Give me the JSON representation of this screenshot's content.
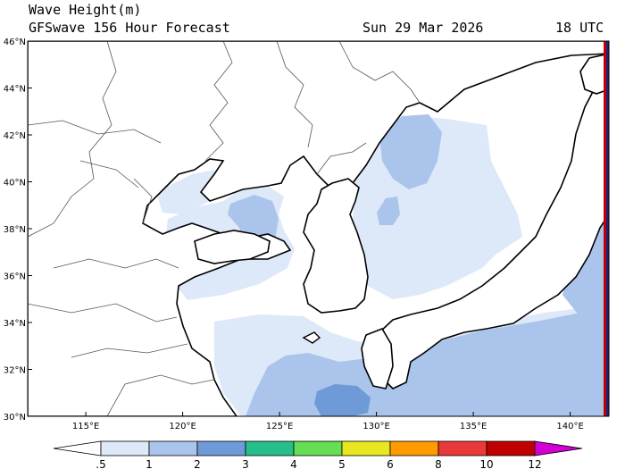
{
  "header": {
    "title": "Wave Height(m)",
    "model": "GFSwave 156 Hour Forecast",
    "date": "Sun 29 Mar 2026",
    "time": "18 UTC"
  },
  "map": {
    "lon_range": [
      112,
      142
    ],
    "lat_range": [
      30,
      46
    ],
    "lat_labels": [
      "30°N",
      "32°N",
      "34°N",
      "36°N",
      "38°N",
      "40°N",
      "42°N",
      "44°N",
      "46°N"
    ],
    "lon_labels": [
      "115°E",
      "120°E",
      "125°E",
      "130°E",
      "135°E",
      "140°E"
    ],
    "colors": {
      "land": "#ffffff",
      "band_0_5_1": "#dde8f8",
      "band_1_2": "#aac4ec",
      "band_2_3": "#6f9ad8",
      "coast": "#000000",
      "border": "#555555"
    }
  },
  "colorbar": {
    "labels": [
      ".5",
      "1",
      "2",
      "3",
      "4",
      "5",
      "6",
      "8",
      "10",
      "12"
    ],
    "colors": [
      "#ffffff",
      "#dde8f8",
      "#aac4ec",
      "#6f9ad8",
      "#26bf8c",
      "#66dd55",
      "#e8e820",
      "#ff9a00",
      "#e83a3a",
      "#c00000",
      "#d200d2"
    ]
  }
}
